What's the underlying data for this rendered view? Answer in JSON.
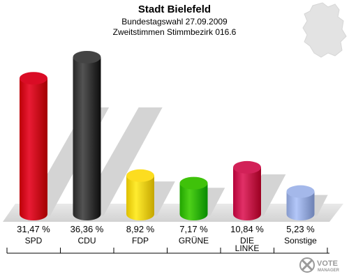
{
  "header": {
    "title": "Stadt Bielefeld",
    "subtitle1": "Bundestagswahl 27.09.2009",
    "subtitle2": "Zweitstimmen Stimmbezirk 016.6"
  },
  "logo": {
    "line1": "VOTE",
    "line2": "MANAGER"
  },
  "chart_data": {
    "type": "bar",
    "title": "Stadt Bielefeld",
    "categories": [
      "SPD",
      "CDU",
      "FDP",
      "GRÜNE",
      "DIE LINKE",
      "Sonstige"
    ],
    "values": [
      31.47,
      36.36,
      8.92,
      7.17,
      10.84,
      5.23
    ],
    "value_labels": [
      "31,47 %",
      "36,36 %",
      "8,92 %",
      "7,17 %",
      "10,84 %",
      "5,23 %"
    ],
    "colors": [
      "#d0021b",
      "#3a3a3a",
      "#f2d316",
      "#35b800",
      "#c8174e",
      "#9aaee0"
    ],
    "ylim": [
      0,
      37
    ],
    "grid": false,
    "legend": "none"
  }
}
